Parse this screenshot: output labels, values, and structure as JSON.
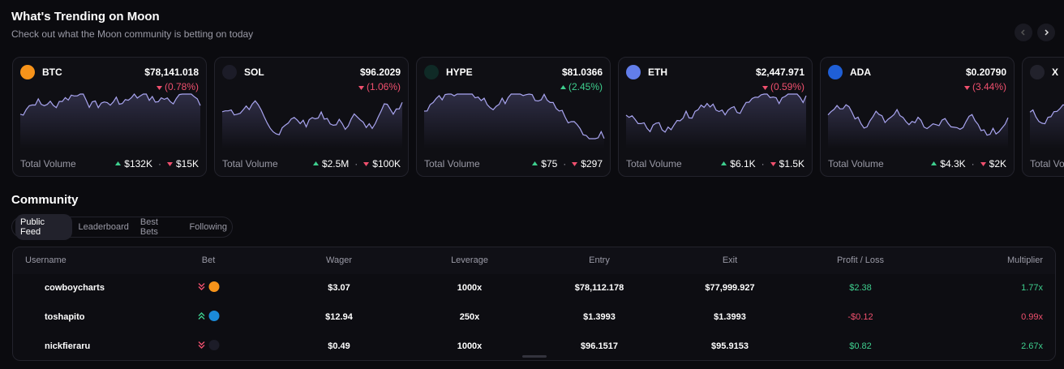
{
  "header": {
    "title": "What's Trending on Moon",
    "subtitle": "Check out what the Moon community is betting on today"
  },
  "trending": [
    {
      "symbol": "BTC",
      "price": "$78,141.018",
      "change": "(0.78%)",
      "direction": "down",
      "volume_label": "Total Volume",
      "volume_up": "$132K",
      "volume_down": "$15K",
      "icon_color": "#f7931a"
    },
    {
      "symbol": "SOL",
      "price": "$96.2029",
      "change": "(1.06%)",
      "direction": "down",
      "volume_label": "Total Volume",
      "volume_up": "$2.5M",
      "volume_down": "$100K",
      "icon_color": "#1c1c28"
    },
    {
      "symbol": "HYPE",
      "price": "$81.0366",
      "change": "(2.45%)",
      "direction": "up",
      "volume_label": "Total Volume",
      "volume_up": "$75",
      "volume_down": "$297",
      "icon_color": "#0f2a26"
    },
    {
      "symbol": "ETH",
      "price": "$2,447.971",
      "change": "(0.59%)",
      "direction": "down",
      "volume_label": "Total Volume",
      "volume_up": "$6.1K",
      "volume_down": "$1.5K",
      "icon_color": "#627eea"
    },
    {
      "symbol": "ADA",
      "price": "$0.20790",
      "change": "(3.44%)",
      "direction": "down",
      "volume_label": "Total Volume",
      "volume_up": "$4.3K",
      "volume_down": "$2K",
      "icon_color": "#1f5fd6"
    },
    {
      "symbol": "X",
      "volume_label": "Total Volume",
      "icon_color": "#22222c"
    }
  ],
  "community": {
    "title": "Community",
    "tabs": [
      "Public Feed",
      "Leaderboard",
      "Best Bets",
      "Following"
    ],
    "active_tab": 0,
    "table": {
      "columns": [
        "Username",
        "Bet",
        "Wager",
        "Leverage",
        "Entry",
        "Exit",
        "Profit / Loss",
        "Multiplier"
      ],
      "rows": [
        {
          "username": "cowboycharts",
          "bet_direction": "down",
          "coin_color": "#f7931a",
          "wager": "$3.07",
          "leverage": "1000x",
          "entry": "$78,112.178",
          "exit": "$77,999.927",
          "pnl": "$2.38",
          "pnl_sign": "positive",
          "multiplier": "1.77x"
        },
        {
          "username": "toshapito",
          "bet_direction": "up",
          "coin_color": "#1b8ad8",
          "wager": "$12.94",
          "leverage": "250x",
          "entry": "$1.3993",
          "exit": "$1.3993",
          "pnl": "-$0.12",
          "pnl_sign": "negative",
          "multiplier": "0.99x"
        },
        {
          "username": "nickfieraru",
          "bet_direction": "down",
          "coin_color": "#1c1c28",
          "wager": "$0.49",
          "leverage": "1000x",
          "entry": "$96.1517",
          "exit": "$95.9153",
          "pnl": "$0.82",
          "pnl_sign": "positive",
          "multiplier": "2.67x"
        }
      ]
    }
  }
}
